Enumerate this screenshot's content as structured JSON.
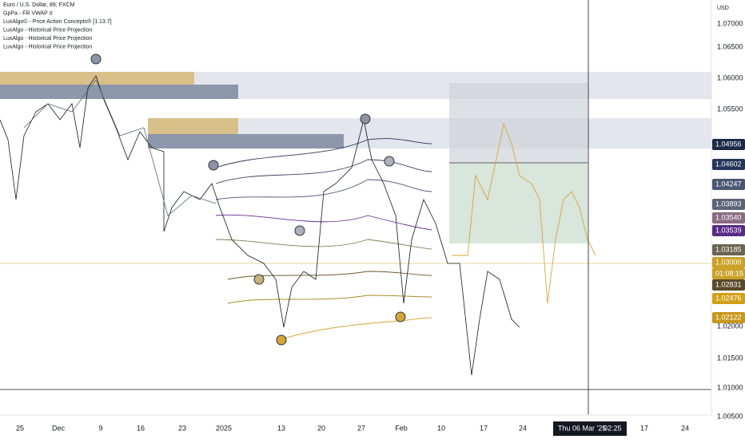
{
  "legend": [
    "Euro / U.S. Dollar, 89, FXCM",
    "GpPa - FR VWAP σ",
    "LuxAlgo© - Price Action Concepts® [1.13.7]",
    "LuxAlgo - Historical Price Projection",
    "LuxAlgo - Historical Price Projection",
    "LuxAlgo - Historical Price Projection"
  ],
  "price_axis": {
    "currency": "USD",
    "labels": [
      "1.07000",
      "1.06500",
      "1.06000",
      "1.05500",
      "1.02000",
      "1.01500",
      "1.01000",
      "1.00500"
    ]
  },
  "price_tags": [
    {
      "label": "1.04956",
      "color": "#1c2a48"
    },
    {
      "label": "1.04602",
      "color": "#27355a"
    },
    {
      "label": "1.04247",
      "color": "#4a5672"
    },
    {
      "label": "1.03893",
      "color": "#5d6478"
    },
    {
      "label": "1.03540",
      "color": "#8a6c82"
    },
    {
      "label": "1.03539",
      "color": "#5b2a86"
    },
    {
      "label": "1.03185",
      "color": "#6b6450"
    },
    {
      "label": "1.03000",
      "color": "#c9a227"
    },
    {
      "label": "01:08:15",
      "color": "#c9a227"
    },
    {
      "label": "1.02831",
      "color": "#5a4a2a"
    },
    {
      "label": "1.02476",
      "color": "#d4a017"
    },
    {
      "label": "1.02122",
      "color": "#c8971c"
    }
  ],
  "time_axis": [
    "25",
    "Dec",
    "9",
    "16",
    "23",
    "2025",
    "13",
    "20",
    "27",
    "Feb",
    "10",
    "17",
    "24",
    "17",
    "24"
  ],
  "crosshair": {
    "date": "Thu 06 Mar '25",
    "time": "02:25"
  }
}
